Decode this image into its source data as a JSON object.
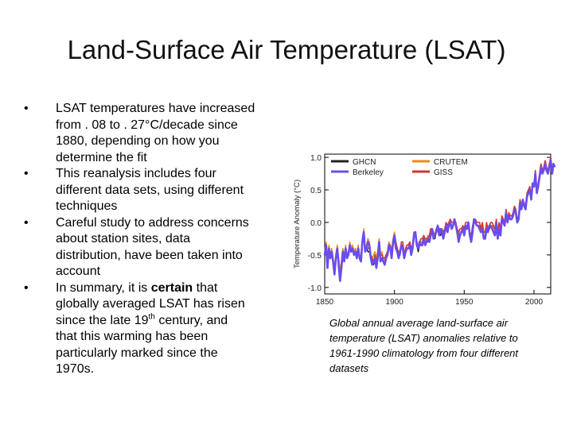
{
  "slide": {
    "title": "Land-Surface Air Temperature (LSAT)",
    "bullets": [
      {
        "lines": [
          "LSAT temperatures have increased",
          "from . 08 to . 27°C/decade since",
          "1880, depending on how you",
          "determine the fit"
        ]
      },
      {
        "lines": [
          "This reanalysis includes four",
          "different data sets, using different",
          "techniques"
        ]
      },
      {
        "lines": [
          "Careful study to address concerns",
          "about station sites, data",
          "distribution, have been taken into",
          "account"
        ]
      }
    ],
    "bullet4": {
      "l1_pre": "In summary, it is ",
      "l1_bold": "certain",
      "l1_post": " that",
      "l2": "globally averaged LSAT has risen",
      "l3_pre": "since the late 19",
      "l3_sup": "th",
      "l3_post": " century, and",
      "l4": "that this warming has been",
      "l5": "particularly marked since the",
      "l6": "1970s."
    },
    "caption_lines": [
      "Global annual average land-surface air",
      "temperature (LSAT) anomalies relative to",
      "1961-1990 climatology from four different",
      "datasets"
    ]
  },
  "chart_data": {
    "type": "line",
    "ylabel": "Temperature Anomaly (°C)",
    "xlim": [
      1850,
      2012
    ],
    "ylim": [
      -1.1,
      1.05
    ],
    "x_ticks": [
      "1850",
      "1900",
      "1950",
      "2000"
    ],
    "y_ticks": [
      "1.0",
      "0.5",
      "0.0",
      "-0.5",
      "-1.0"
    ],
    "x_tick_values": [
      1850,
      1900,
      1950,
      2000
    ],
    "y_tick_values": [
      1.0,
      0.5,
      0.0,
      -0.5,
      -1.0
    ],
    "legend_position": "top-left",
    "series": [
      {
        "name": "Berkeley",
        "color": "#6a4cf0",
        "start": 1850,
        "values": [
          -0.5,
          -0.35,
          -0.7,
          -0.4,
          -0.55,
          -0.45,
          -0.6,
          -0.8,
          -0.55,
          -0.4,
          -0.65,
          -0.9,
          -0.7,
          -0.45,
          -0.6,
          -0.4,
          -0.55,
          -0.5,
          -0.35,
          -0.45,
          -0.4,
          -0.5,
          -0.45,
          -0.55,
          -0.4,
          -0.55,
          -0.6,
          -0.3,
          -0.15,
          -0.45,
          -0.4,
          -0.3,
          -0.35,
          -0.55,
          -0.65,
          -0.6,
          -0.55,
          -0.7,
          -0.55,
          -0.3,
          -0.6,
          -0.55,
          -0.6,
          -0.65,
          -0.55,
          -0.5,
          -0.35,
          -0.4,
          -0.55,
          -0.3,
          -0.2,
          -0.4,
          -0.45,
          -0.55,
          -0.45,
          -0.35,
          -0.4,
          -0.55,
          -0.45,
          -0.4,
          -0.4,
          -0.35,
          -0.5,
          -0.4,
          -0.2,
          -0.15,
          -0.35,
          -0.4,
          -0.3,
          -0.35,
          -0.35,
          -0.25,
          -0.35,
          -0.3,
          -0.25,
          -0.3,
          -0.2,
          -0.1,
          -0.25,
          -0.2,
          -0.15,
          -0.05,
          -0.2,
          -0.1,
          -0.15,
          -0.25,
          -0.15,
          -0.05,
          -0.15,
          -0.05,
          0.0,
          -0.1,
          -0.05,
          0.05,
          -0.05,
          -0.15,
          -0.3,
          -0.2,
          -0.15,
          -0.1,
          -0.2,
          -0.05,
          -0.1,
          0.0,
          -0.2,
          -0.3,
          -0.15,
          0.05,
          0.0,
          -0.05,
          -0.05,
          -0.1,
          -0.15,
          -0.1,
          -0.25,
          -0.25,
          -0.1,
          -0.15,
          -0.05,
          -0.05,
          -0.1,
          -0.15,
          -0.2,
          0.0,
          -0.25,
          -0.1,
          -0.2,
          0.05,
          0.0,
          -0.05,
          0.15,
          0.0,
          0.1,
          0.05,
          0.05,
          0.1,
          0.2,
          0.15,
          0.0,
          0.05,
          0.3,
          0.2,
          0.35,
          0.25,
          0.2,
          0.4,
          0.45,
          0.5,
          0.35,
          0.6,
          0.55,
          0.75,
          0.45,
          0.55,
          0.7,
          0.85,
          0.75,
          0.8,
          0.9,
          0.8,
          0.75,
          0.85,
          0.95,
          0.75,
          0.9,
          0.85
        ]
      },
      {
        "name": "GHCN",
        "color": "#222222",
        "start": 1880,
        "values": [
          -0.4,
          -0.45,
          -0.45,
          -0.55,
          -0.6,
          -0.65,
          -0.55,
          -0.65,
          -0.55,
          -0.35,
          -0.55,
          -0.55,
          -0.6,
          -0.6,
          -0.55,
          -0.5,
          -0.4,
          -0.4,
          -0.5,
          -0.35,
          -0.25,
          -0.35,
          -0.45,
          -0.5,
          -0.5,
          -0.35,
          -0.35,
          -0.55,
          -0.45,
          -0.4,
          -0.4,
          -0.35,
          -0.45,
          -0.4,
          -0.2,
          -0.2,
          -0.35,
          -0.45,
          -0.35,
          -0.3,
          -0.3,
          -0.25,
          -0.3,
          -0.3,
          -0.3,
          -0.25,
          -0.15,
          -0.15,
          -0.2,
          -0.25,
          -0.15,
          -0.1,
          -0.15,
          -0.2,
          -0.15,
          -0.2,
          -0.15,
          -0.05,
          -0.1,
          -0.05,
          0.0,
          -0.05,
          -0.05,
          0.0,
          -0.05,
          -0.15,
          -0.2,
          -0.15,
          -0.15,
          -0.1,
          -0.15,
          -0.05,
          -0.05,
          -0.05,
          -0.2,
          -0.25,
          -0.1,
          0.0,
          0.0,
          -0.05,
          -0.05,
          -0.05,
          -0.15,
          -0.05,
          -0.2,
          -0.2,
          -0.05,
          -0.15,
          -0.1,
          -0.05,
          -0.05,
          -0.1,
          -0.15,
          0.0,
          -0.2,
          -0.05,
          -0.15,
          0.05,
          0.0,
          -0.05,
          0.15,
          0.0,
          0.1,
          0.05,
          0.05,
          0.1,
          0.2,
          0.15,
          0.0,
          0.05,
          0.3,
          0.2,
          0.3,
          0.25,
          0.2,
          0.4,
          0.45,
          0.5,
          0.35,
          0.55,
          0.55,
          0.7,
          0.45,
          0.55,
          0.7,
          0.85,
          0.75,
          0.8,
          0.85,
          0.8,
          0.75,
          0.85,
          0.9,
          0.75
        ]
      },
      {
        "name": "CRUTEM",
        "color": "#f08a1c",
        "start": 1850,
        "values": [
          -0.45,
          -0.3,
          -0.6,
          -0.35,
          -0.5,
          -0.4,
          -0.55,
          -0.7,
          -0.5,
          -0.35,
          -0.55,
          -0.75,
          -0.6,
          -0.4,
          -0.55,
          -0.35,
          -0.5,
          -0.45,
          -0.3,
          -0.4,
          -0.35,
          -0.45,
          -0.4,
          -0.5,
          -0.35,
          -0.5,
          -0.55,
          -0.25,
          -0.1,
          -0.4,
          -0.35,
          -0.25,
          -0.3,
          -0.5,
          -0.55,
          -0.5,
          -0.45,
          -0.55,
          -0.45,
          -0.25,
          -0.5,
          -0.45,
          -0.55,
          -0.6,
          -0.5,
          -0.45,
          -0.3,
          -0.35,
          -0.45,
          -0.25,
          -0.15,
          -0.3,
          -0.4,
          -0.5,
          -0.45,
          -0.35,
          -0.35,
          -0.5,
          -0.4,
          -0.35,
          -0.35,
          -0.3,
          -0.4,
          -0.35,
          -0.15,
          -0.15,
          -0.3,
          -0.4,
          -0.3,
          -0.3,
          -0.3,
          -0.2,
          -0.3,
          -0.25,
          -0.2,
          -0.25,
          -0.1,
          -0.1,
          -0.2,
          -0.2,
          -0.1,
          -0.05,
          -0.15,
          -0.1,
          -0.1,
          -0.2,
          -0.1,
          -0.05,
          -0.15,
          -0.05,
          0.0,
          -0.05,
          -0.05,
          0.05,
          -0.05,
          -0.15,
          -0.25,
          -0.15,
          -0.15,
          -0.1,
          -0.15,
          -0.05,
          -0.05,
          0.0,
          -0.15,
          -0.25,
          -0.1,
          0.05,
          0.0,
          -0.05,
          -0.05,
          -0.05,
          -0.15,
          -0.05,
          -0.2,
          -0.2,
          -0.05,
          -0.15,
          -0.05,
          -0.05,
          -0.05,
          -0.1,
          -0.15,
          0.0,
          -0.2,
          -0.05,
          -0.15,
          0.05,
          0.0,
          -0.05,
          0.15,
          0.0,
          0.1,
          0.05,
          0.05,
          0.1,
          0.2,
          0.15,
          0.0,
          0.05,
          0.3,
          0.2,
          0.35,
          0.25,
          0.2,
          0.4,
          0.45,
          0.5,
          0.35,
          0.55,
          0.55,
          0.75,
          0.45,
          0.55,
          0.7,
          0.85,
          0.75,
          0.8,
          0.9,
          0.8,
          0.75,
          0.85,
          0.9,
          0.75
        ]
      },
      {
        "name": "GISS",
        "color": "#d6332a",
        "start": 1880,
        "values": [
          -0.35,
          -0.4,
          -0.4,
          -0.5,
          -0.55,
          -0.6,
          -0.5,
          -0.6,
          -0.5,
          -0.3,
          -0.5,
          -0.5,
          -0.55,
          -0.55,
          -0.5,
          -0.45,
          -0.35,
          -0.35,
          -0.45,
          -0.3,
          -0.2,
          -0.3,
          -0.4,
          -0.45,
          -0.45,
          -0.3,
          -0.3,
          -0.5,
          -0.4,
          -0.35,
          -0.35,
          -0.3,
          -0.4,
          -0.35,
          -0.15,
          -0.15,
          -0.3,
          -0.4,
          -0.3,
          -0.25,
          -0.25,
          -0.2,
          -0.25,
          -0.25,
          -0.25,
          -0.2,
          -0.1,
          -0.1,
          -0.15,
          -0.2,
          -0.1,
          -0.05,
          -0.1,
          -0.15,
          -0.1,
          -0.15,
          -0.1,
          0.0,
          -0.05,
          0.0,
          0.05,
          0.0,
          0.0,
          0.05,
          0.0,
          -0.1,
          -0.15,
          -0.1,
          -0.1,
          -0.05,
          -0.1,
          0.0,
          0.0,
          0.0,
          -0.15,
          -0.2,
          -0.05,
          0.05,
          0.05,
          0.0,
          0.0,
          0.0,
          -0.1,
          0.0,
          -0.15,
          -0.15,
          0.0,
          -0.1,
          -0.05,
          0.0,
          0.0,
          -0.05,
          -0.1,
          0.05,
          -0.15,
          0.0,
          -0.1,
          0.1,
          0.05,
          0.0,
          0.2,
          0.05,
          0.15,
          0.1,
          0.1,
          0.15,
          0.25,
          0.2,
          0.05,
          0.1,
          0.35,
          0.25,
          0.35,
          0.3,
          0.25,
          0.45,
          0.5,
          0.55,
          0.4,
          0.6,
          0.6,
          0.8,
          0.5,
          0.6,
          0.75,
          0.9,
          0.8,
          0.85,
          0.95,
          0.85,
          0.8,
          0.9,
          1.0,
          0.8
        ]
      }
    ]
  }
}
